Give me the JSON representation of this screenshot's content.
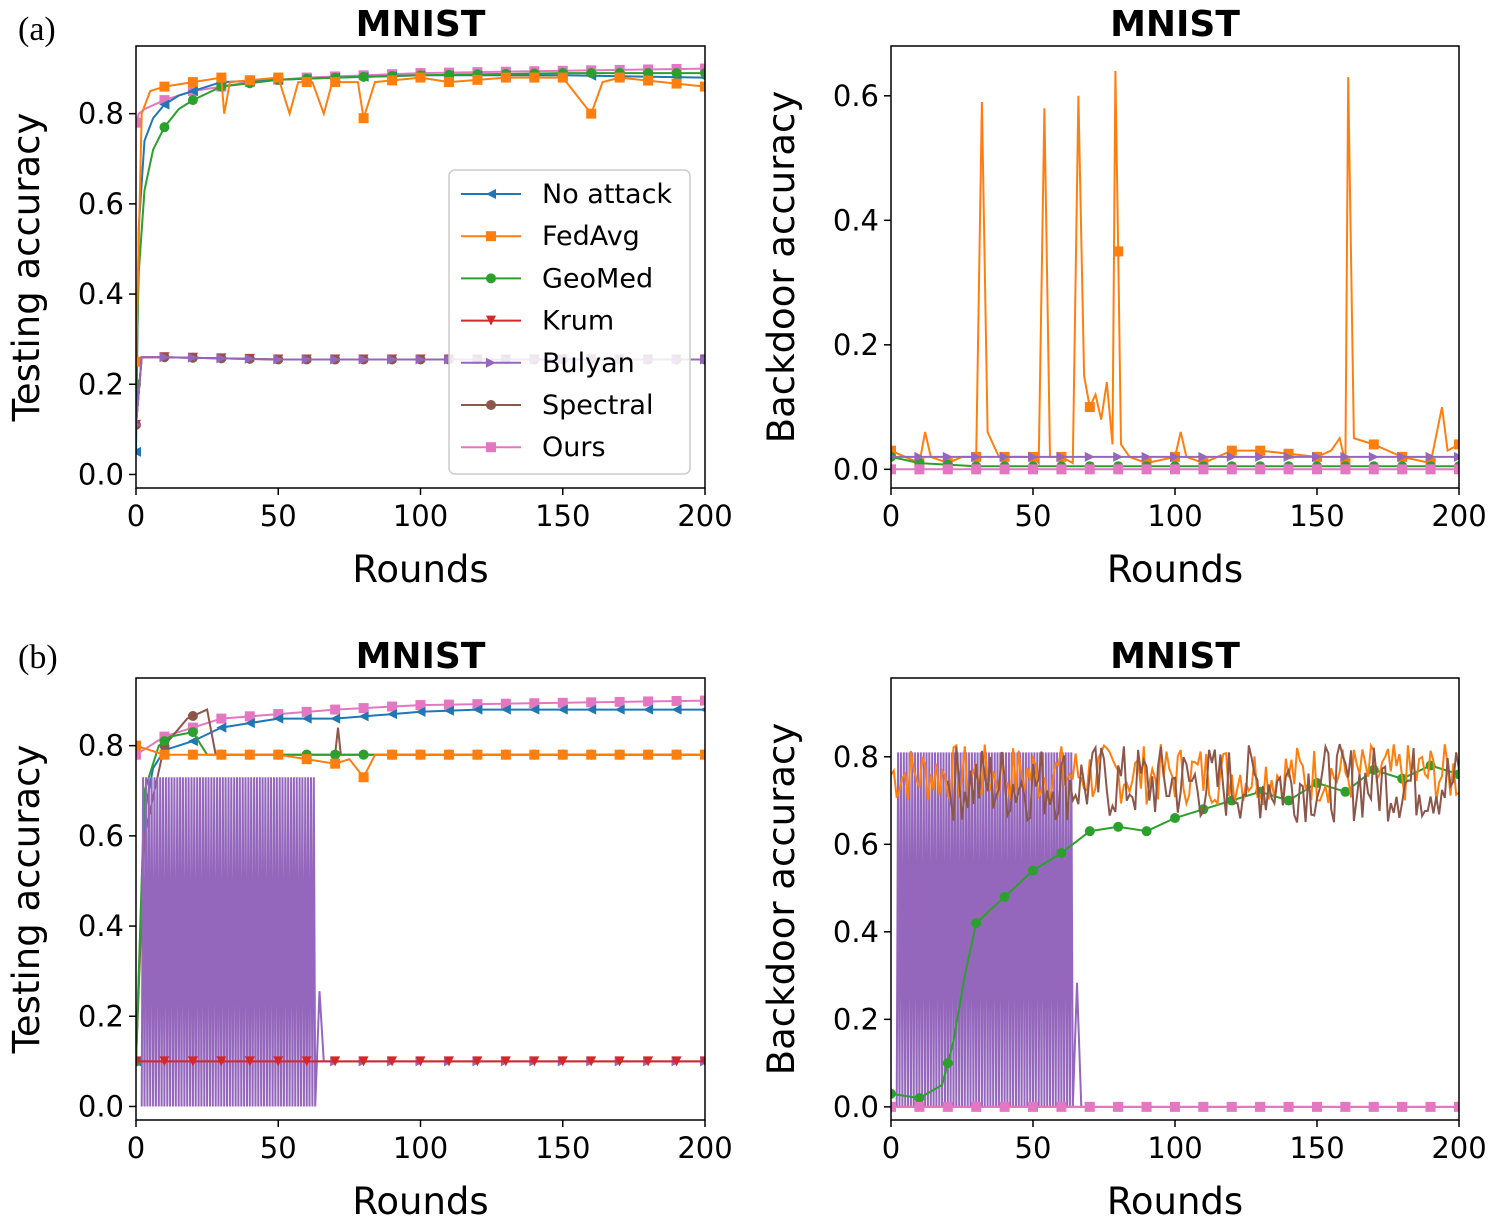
{
  "panel_labels": [
    "(a)",
    "(b)"
  ],
  "legend": {
    "entries": [
      {
        "name": "No attack",
        "color": "#1f77b4",
        "marker": "triangle-left"
      },
      {
        "name": "FedAvg",
        "color": "#ff7f0e",
        "marker": "square"
      },
      {
        "name": "GeoMed",
        "color": "#2ca02c",
        "marker": "circle"
      },
      {
        "name": "Krum",
        "color": "#d62728",
        "marker": "triangle-down"
      },
      {
        "name": "Bulyan",
        "color": "#9467bd",
        "marker": "triangle-right"
      },
      {
        "name": "Spectral",
        "color": "#8c564b",
        "marker": "circle"
      },
      {
        "name": "Ours",
        "color": "#e377c2",
        "marker": "square"
      }
    ]
  },
  "chart_data": [
    {
      "id": "a-test",
      "panel": "(a)",
      "type": "line",
      "title": "MNIST",
      "xlabel": "Rounds",
      "ylabel": "Testing accuracy",
      "xlim": [
        0,
        200
      ],
      "ylim": [
        -0.03,
        0.95
      ],
      "xticks": [
        0,
        50,
        100,
        150,
        200
      ],
      "yticks": [
        0.0,
        0.2,
        0.4,
        0.6,
        0.8
      ],
      "ytick_labels": [
        "0.0",
        "0.2",
        "0.4",
        "0.6",
        "0.8"
      ],
      "legend": true,
      "series": [
        {
          "name": "Ours",
          "color": "#e377c2",
          "x": [
            0,
            1,
            3,
            10,
            20,
            40,
            60,
            100,
            150,
            200
          ],
          "y": [
            0.78,
            0.8,
            0.81,
            0.83,
            0.85,
            0.87,
            0.88,
            0.89,
            0.895,
            0.9
          ]
        },
        {
          "name": "No attack",
          "color": "#1f77b4",
          "x": [
            0,
            1,
            3,
            6,
            10,
            15,
            20,
            30,
            50,
            70,
            100,
            150,
            200
          ],
          "y": [
            0.05,
            0.55,
            0.74,
            0.79,
            0.82,
            0.84,
            0.85,
            0.87,
            0.875,
            0.88,
            0.885,
            0.885,
            0.88
          ]
        },
        {
          "name": "GeoMed",
          "color": "#2ca02c",
          "x": [
            0,
            1,
            3,
            6,
            10,
            15,
            20,
            30,
            50,
            70,
            100,
            150,
            200
          ],
          "y": [
            0.2,
            0.45,
            0.63,
            0.72,
            0.77,
            0.81,
            0.83,
            0.86,
            0.875,
            0.88,
            0.885,
            0.89,
            0.89
          ]
        },
        {
          "name": "FedAvg",
          "color": "#ff7f0e",
          "x": [
            0,
            2,
            5,
            10,
            20,
            30,
            31,
            33,
            50,
            54,
            57,
            62,
            66,
            69,
            78,
            80,
            84,
            100,
            110,
            130,
            150,
            160,
            164,
            170,
            200
          ],
          "y": [
            0.25,
            0.8,
            0.85,
            0.86,
            0.87,
            0.88,
            0.8,
            0.87,
            0.88,
            0.8,
            0.87,
            0.87,
            0.8,
            0.87,
            0.87,
            0.79,
            0.87,
            0.88,
            0.87,
            0.88,
            0.88,
            0.8,
            0.87,
            0.88,
            0.86
          ]
        },
        {
          "name": "Krum",
          "color": "#d62728",
          "x": [
            0,
            2,
            10,
            50,
            100,
            150,
            200
          ],
          "y": [
            0.11,
            0.26,
            0.26,
            0.255,
            0.255,
            0.255,
            0.255
          ]
        },
        {
          "name": "Spectral",
          "color": "#8c564b",
          "x": [
            0,
            2,
            10,
            50,
            100,
            150,
            200
          ],
          "y": [
            0.11,
            0.26,
            0.26,
            0.255,
            0.255,
            0.255,
            0.255
          ]
        },
        {
          "name": "Bulyan",
          "color": "#9467bd",
          "x": [
            0,
            2,
            10,
            50,
            100,
            150,
            200
          ],
          "y": [
            0.11,
            0.26,
            0.26,
            0.255,
            0.255,
            0.255,
            0.255
          ]
        }
      ]
    },
    {
      "id": "a-backdoor",
      "panel": "(a)",
      "type": "line",
      "title": "MNIST",
      "xlabel": "Rounds",
      "ylabel": "Backdoor accuracy",
      "xlim": [
        0,
        200
      ],
      "ylim": [
        -0.03,
        0.68
      ],
      "xticks": [
        0,
        50,
        100,
        150,
        200
      ],
      "yticks": [
        0.0,
        0.2,
        0.4,
        0.6
      ],
      "ytick_labels": [
        "0.0",
        "0.2",
        "0.4",
        "0.6"
      ],
      "legend": false,
      "series": [
        {
          "name": "FedAvg",
          "color": "#ff7f0e",
          "x": [
            0,
            5,
            10,
            12,
            14,
            20,
            25,
            30,
            32,
            34,
            38,
            50,
            52,
            54,
            56,
            60,
            64,
            66,
            68,
            70,
            72,
            74,
            76,
            78,
            79,
            80,
            81,
            84,
            90,
            100,
            102,
            104,
            110,
            120,
            130,
            150,
            155,
            158,
            160,
            161,
            163,
            170,
            180,
            190,
            194,
            196,
            200
          ],
          "y": [
            0.03,
            0.02,
            0.01,
            0.06,
            0.02,
            0.01,
            0.02,
            0.02,
            0.59,
            0.06,
            0.02,
            0.02,
            0.01,
            0.58,
            0.02,
            0.02,
            0.01,
            0.6,
            0.15,
            0.1,
            0.12,
            0.08,
            0.14,
            0.04,
            0.64,
            0.35,
            0.04,
            0.02,
            0.01,
            0.02,
            0.06,
            0.02,
            0.01,
            0.03,
            0.03,
            0.02,
            0.03,
            0.05,
            0.01,
            0.63,
            0.05,
            0.04,
            0.02,
            0.01,
            0.1,
            0.03,
            0.04
          ]
        },
        {
          "name": "GeoMed",
          "color": "#2ca02c",
          "x": [
            0,
            10,
            30,
            200
          ],
          "y": [
            0.02,
            0.01,
            0.005,
            0.005
          ]
        },
        {
          "name": "Bulyan",
          "color": "#9467bd",
          "x": [
            0,
            200
          ],
          "y": [
            0.02,
            0.02
          ]
        },
        {
          "name": "Ours",
          "color": "#e377c2",
          "x": [
            0,
            200
          ],
          "y": [
            0.0,
            0.0
          ]
        }
      ]
    },
    {
      "id": "b-test",
      "panel": "(b)",
      "type": "line",
      "title": "MNIST",
      "xlabel": "Rounds",
      "ylabel": "Testing accuracy",
      "xlim": [
        0,
        200
      ],
      "ylim": [
        -0.03,
        0.95
      ],
      "xticks": [
        0,
        50,
        100,
        150,
        200
      ],
      "yticks": [
        0.0,
        0.2,
        0.4,
        0.6,
        0.8
      ],
      "ytick_labels": [
        "0.0",
        "0.2",
        "0.4",
        "0.6",
        "0.8"
      ],
      "legend": false,
      "series": [
        {
          "name": "Ours",
          "color": "#e377c2",
          "x": [
            0,
            5,
            10,
            20,
            30,
            50,
            70,
            100,
            150,
            200
          ],
          "y": [
            0.78,
            0.8,
            0.82,
            0.84,
            0.86,
            0.87,
            0.88,
            0.89,
            0.895,
            0.9
          ]
        },
        {
          "name": "No attack",
          "color": "#1f77b4",
          "x": [
            0,
            3,
            6,
            10,
            20,
            30,
            50,
            70,
            90,
            100,
            120,
            150,
            180,
            200
          ],
          "y": [
            0.1,
            0.65,
            0.75,
            0.79,
            0.81,
            0.84,
            0.86,
            0.86,
            0.87,
            0.875,
            0.88,
            0.88,
            0.88,
            0.88
          ]
        },
        {
          "name": "Spectral",
          "color": "#8c564b",
          "x": [
            0,
            3,
            10,
            18,
            25,
            28,
            32,
            60,
            70,
            71,
            72,
            90,
            150,
            200
          ],
          "y": [
            0.1,
            0.6,
            0.8,
            0.86,
            0.88,
            0.78,
            0.78,
            0.78,
            0.78,
            0.84,
            0.78,
            0.78,
            0.78,
            0.78
          ]
        },
        {
          "name": "GeoMed",
          "color": "#2ca02c",
          "x": [
            0,
            3,
            8,
            12,
            20,
            25,
            28,
            40,
            100,
            200
          ],
          "y": [
            0.1,
            0.7,
            0.8,
            0.82,
            0.83,
            0.78,
            0.78,
            0.78,
            0.78,
            0.78
          ]
        },
        {
          "name": "FedAvg",
          "color": "#ff7f0e",
          "x": [
            0,
            10,
            30,
            50,
            60,
            70,
            75,
            80,
            84,
            100,
            200
          ],
          "y": [
            0.8,
            0.78,
            0.78,
            0.78,
            0.77,
            0.76,
            0.77,
            0.73,
            0.78,
            0.78,
            0.78
          ]
        },
        {
          "name": "Bulyan",
          "color": "#9467bd",
          "x": [
            0,
            200
          ],
          "y": [
            0.1,
            0.1
          ],
          "oscillation": {
            "from": 2,
            "to": 62,
            "low": 0.0,
            "high": 0.73
          }
        },
        {
          "name": "Krum",
          "color": "#d62728",
          "x": [
            0,
            66,
            200
          ],
          "y": [
            0.1,
            0.1,
            0.1
          ]
        }
      ]
    },
    {
      "id": "b-backdoor",
      "panel": "(b)",
      "type": "line",
      "title": "MNIST",
      "xlabel": "Rounds",
      "ylabel": "Backdoor accuracy",
      "xlim": [
        0,
        200
      ],
      "ylim": [
        -0.03,
        0.98
      ],
      "xticks": [
        0,
        50,
        100,
        150,
        200
      ],
      "yticks": [
        0.0,
        0.2,
        0.4,
        0.6,
        0.8
      ],
      "ytick_labels": [
        "0.0",
        "0.2",
        "0.4",
        "0.6",
        "0.8"
      ],
      "legend": false,
      "series": [
        {
          "name": "Bulyan",
          "color": "#9467bd",
          "x": [
            0,
            200
          ],
          "y": [
            0.0,
            0.0
          ],
          "oscillation": {
            "from": 2,
            "to": 63,
            "low": 0.0,
            "high": 0.81
          }
        },
        {
          "name": "GeoMed",
          "color": "#2ca02c",
          "x": [
            0,
            10,
            18,
            22,
            26,
            30,
            40,
            50,
            60,
            70,
            80,
            90,
            100,
            110,
            120,
            130,
            140,
            150,
            160,
            170,
            180,
            190,
            200
          ],
          "y": [
            0.03,
            0.02,
            0.05,
            0.15,
            0.3,
            0.42,
            0.48,
            0.54,
            0.58,
            0.63,
            0.64,
            0.63,
            0.66,
            0.68,
            0.7,
            0.72,
            0.7,
            0.74,
            0.72,
            0.77,
            0.75,
            0.78,
            0.76
          ]
        },
        {
          "name": "FedAvg",
          "color": "#ff7f0e",
          "x": [
            0,
            200
          ],
          "y": [
            0.75,
            0.75
          ],
          "noise": {
            "from": 0,
            "to": 200,
            "center": 0.76,
            "amp": 0.07
          }
        },
        {
          "name": "Spectral",
          "color": "#8c564b",
          "x": [
            0,
            200
          ],
          "y": [
            0.75,
            0.75
          ],
          "noise": {
            "from": 20,
            "to": 200,
            "center": 0.74,
            "amp": 0.09
          }
        },
        {
          "name": "Ours",
          "color": "#e377c2",
          "x": [
            0,
            200
          ],
          "y": [
            0.0,
            0.0
          ]
        }
      ]
    }
  ]
}
